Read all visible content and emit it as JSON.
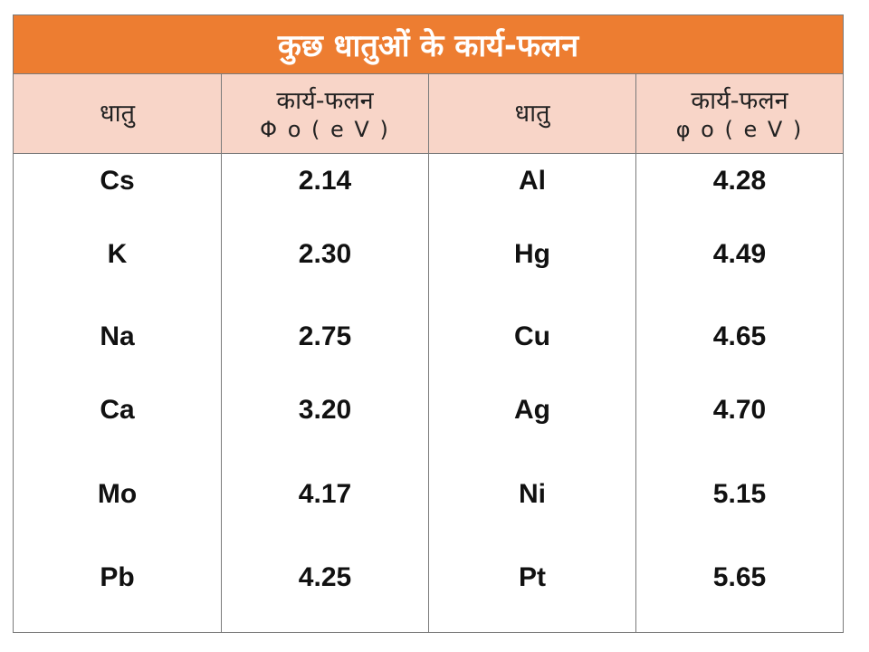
{
  "title": "कुछ धातुओं के कार्य-फलन",
  "headers": {
    "metal_left": "धातु",
    "work_function_left": "कार्य-फलन",
    "unit_left": "Φ o ( e V )",
    "metal_right": "धातु",
    "work_function_right": "कार्य-फलन",
    "unit_right": "φ o ( e V )"
  },
  "left": {
    "metals": [
      "Cs",
      "K",
      "Na",
      "Ca",
      "Mo",
      "Pb"
    ],
    "values": [
      "2.14",
      "2.30",
      "2.75",
      "3.20",
      "4.17",
      "4.25"
    ]
  },
  "right": {
    "metals": [
      "Al",
      "Hg",
      "Cu",
      "Ag",
      "Ni",
      "Pt"
    ],
    "values": [
      "4.28",
      "4.49",
      "4.65",
      "4.70",
      "5.15",
      "5.65"
    ]
  },
  "colors": {
    "title_bg": "#ed7d31",
    "header_bg": "#f8d5c8",
    "border": "#7a7a7a"
  }
}
